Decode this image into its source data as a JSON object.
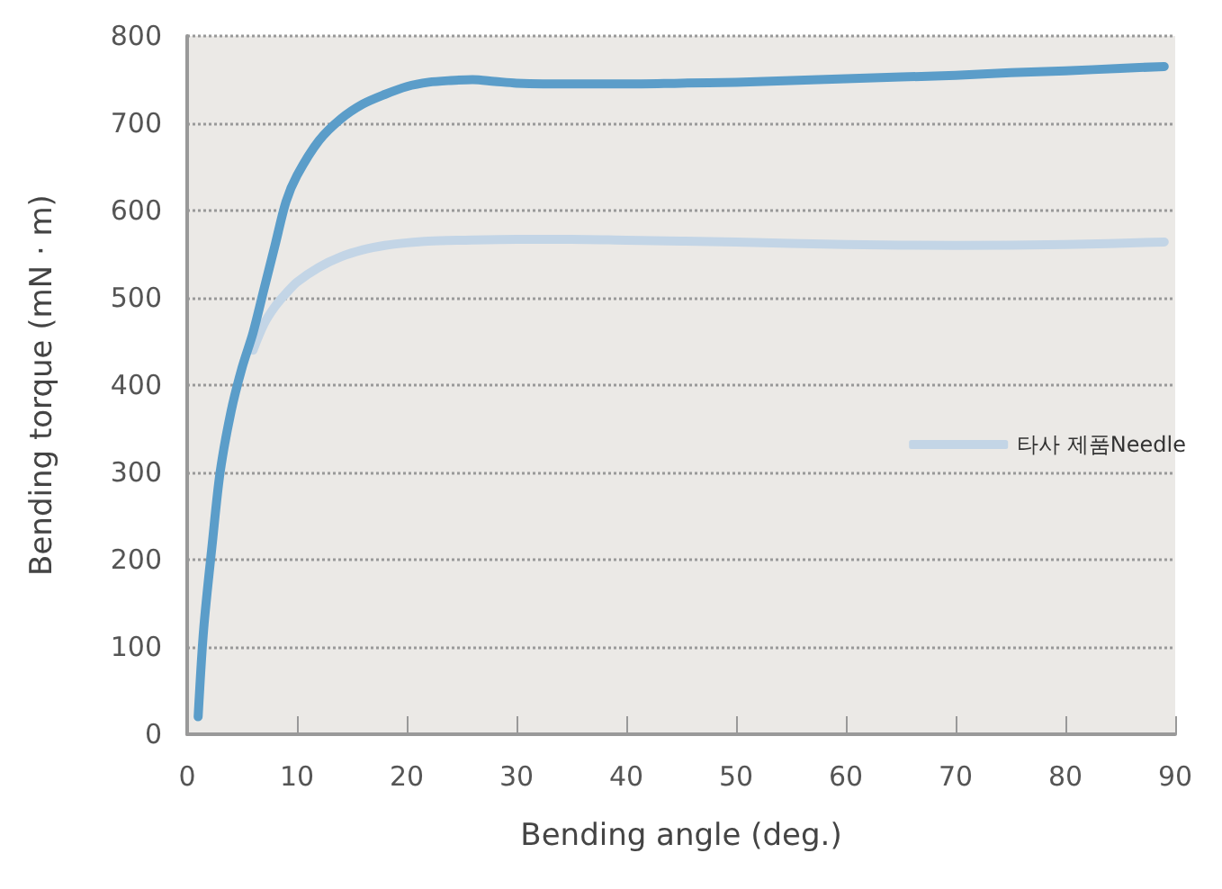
{
  "chart_data": {
    "type": "line",
    "xlabel": "Bending angle (deg.)",
    "ylabel": "Bending torque (mN · m)",
    "xlim": [
      0,
      90
    ],
    "xticks": [
      0,
      10,
      20,
      30,
      40,
      50,
      60,
      70,
      80,
      90
    ],
    "ylim": [
      0,
      800
    ],
    "yticks": [
      0,
      100,
      200,
      300,
      400,
      500,
      600,
      700,
      800
    ],
    "grid": "y",
    "legend": "right",
    "marker": "none",
    "line_style": "solid",
    "series": [
      {
        "color": "#5b9dc9",
        "x": [
          1,
          1.5,
          2.3,
          3,
          4,
          5,
          6,
          7,
          8,
          9,
          10,
          12,
          14,
          16,
          18,
          20,
          22,
          24,
          26,
          28,
          30,
          35,
          40,
          45,
          50,
          55,
          60,
          65,
          70,
          75,
          80,
          85,
          89
        ],
        "values": [
          20,
          120,
          220,
          300,
          370,
          420,
          460,
          510,
          560,
          610,
          640,
          680,
          705,
          722,
          733,
          742,
          747,
          749,
          750,
          748,
          746,
          745,
          745,
          746,
          747,
          749,
          751,
          753,
          755,
          758,
          760,
          763,
          765
        ]
      },
      {
        "name": "타사 제품Needle",
        "color": "#c3d5e6",
        "x": [
          6,
          7,
          8,
          9,
          10,
          12,
          14,
          16,
          18,
          20,
          22,
          25,
          30,
          35,
          40,
          50,
          60,
          70,
          80,
          89
        ],
        "values": [
          440,
          470,
          490,
          505,
          518,
          535,
          547,
          555,
          560,
          563,
          565,
          566,
          567,
          567,
          566,
          564,
          561,
          560,
          561,
          564
        ]
      }
    ]
  }
}
